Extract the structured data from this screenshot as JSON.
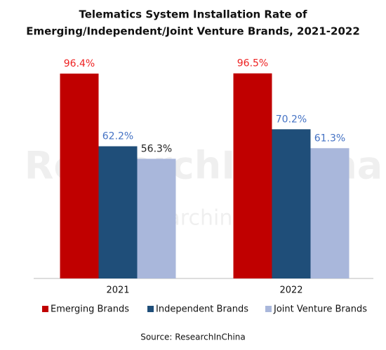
{
  "chart_data": {
    "type": "bar",
    "title": "Telematics System Installation Rate of",
    "subtitle": "Emerging/Independent/Joint Venture Brands, 2021-2022",
    "categories": [
      "2021",
      "2022"
    ],
    "series": [
      {
        "name": "Emerging Brands",
        "color": "#c00000",
        "values": [
          96.4,
          96.5
        ],
        "value_labels": [
          "96.4%",
          "96.5%"
        ],
        "label_colors": [
          "#ee2222",
          "#ee2222"
        ]
      },
      {
        "name": "Independent Brands",
        "color": "#1f4e79",
        "values": [
          62.2,
          70.2
        ],
        "value_labels": [
          "62.2%",
          "70.2%"
        ],
        "label_colors": [
          "#4472c4",
          "#4472c4"
        ]
      },
      {
        "name": "Joint Venture Brands",
        "color": "#a9b7db",
        "values": [
          56.3,
          61.3
        ],
        "value_labels": [
          "56.3%",
          "61.3%"
        ],
        "label_colors": [
          "#222222",
          "#4472c4"
        ]
      }
    ],
    "legend": "bottom",
    "watermark": [
      "ResearchInChina",
      "www.researchinchina.com"
    ],
    "source": "Source: ResearchInChina"
  }
}
